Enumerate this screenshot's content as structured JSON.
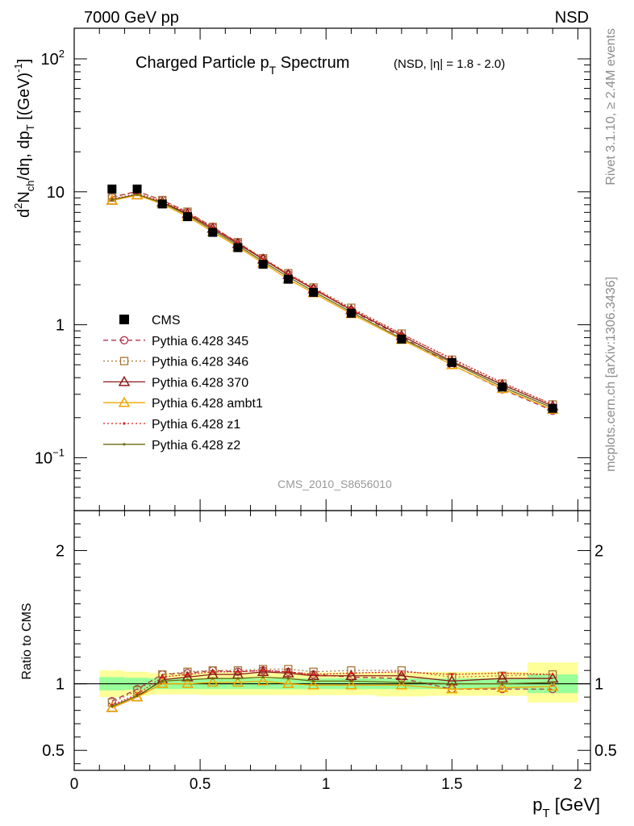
{
  "header": {
    "energy_label": "7000 GeV pp",
    "process_label": "NSD"
  },
  "title": {
    "main": "Charged Particle p",
    "main_sub": "T",
    "main_tail": " Spectrum",
    "cut": "(NSD, |η| = 1.8 - 2.0)"
  },
  "ylabel": {
    "text": "d²N_ch/dη, dp_T [(GeV)⁻¹]",
    "p1": "d",
    "p1_sup": "2",
    "p2": "N",
    "p2_sub": "ch",
    "p3": "/dη, dp",
    "p3_sub": "T",
    "p4": " [(GeV)",
    "p4_sup": "-1",
    "p5": "]"
  },
  "ratio_ylabel": "Ratio to CMS",
  "xlabel": {
    "main": "p",
    "sub": "T",
    "tail": " [GeV]"
  },
  "side_labels": {
    "rivet": "Rivet 3.1.10, ≥ 2.4M events",
    "mcplots": "mcplots.cern.ch [arXiv:1306.3436]"
  },
  "analysis_label": "CMS_2010_S8656010",
  "main_yticks": [
    {
      "base": "10",
      "exp": "2",
      "value": 100
    },
    {
      "base": "10",
      "exp": "",
      "value": 10
    },
    {
      "base": "1",
      "exp": "",
      "value": 1
    },
    {
      "base": "10",
      "exp": "−1",
      "value": 0.1
    }
  ],
  "xticks": [
    "0",
    "0.5",
    "1",
    "1.5",
    "2"
  ],
  "ratio_yticks": [
    "0.5",
    "1",
    "2"
  ],
  "legend": [
    {
      "label": "CMS",
      "color": "#000000",
      "marker": "square-filled",
      "line": "none"
    },
    {
      "label": "Pythia 6.428 345",
      "color": "#b0344e",
      "marker": "circle-open",
      "line": "dashed"
    },
    {
      "label": "Pythia 6.428 346",
      "color": "#a8783a",
      "marker": "square-open",
      "line": "dotted"
    },
    {
      "label": "Pythia 6.428 370",
      "color": "#8b1a1a",
      "marker": "triangle-open",
      "line": "solid"
    },
    {
      "label": "Pythia 6.428 ambt1",
      "color": "#f0a500",
      "marker": "triangle-open",
      "line": "solid"
    },
    {
      "label": "Pythia 6.428 z1",
      "color": "#e02020",
      "marker": "dot",
      "line": "dotted"
    },
    {
      "label": "Pythia 6.428 z2",
      "color": "#6b6b10",
      "marker": "dot",
      "line": "solid"
    }
  ],
  "chart_data": {
    "type": "line",
    "x": [
      0.15,
      0.25,
      0.35,
      0.45,
      0.55,
      0.65,
      0.75,
      0.85,
      0.95,
      1.1,
      1.3,
      1.5,
      1.7,
      1.9
    ],
    "xlim": [
      0,
      2.05
    ],
    "ylim": [
      0.04,
      170
    ],
    "yscale": "log",
    "ratio_ylim": [
      0.35,
      2.3
    ],
    "data": {
      "name": "CMS",
      "values": [
        10.5,
        10.5,
        8.1,
        6.5,
        4.95,
        3.8,
        2.85,
        2.2,
        1.75,
        1.22,
        0.78,
        0.52,
        0.34,
        0.235
      ]
    },
    "ratio_band_inner": [
      {
        "x0": 0.1,
        "x1": 0.2,
        "lo": 0.95,
        "hi": 1.05
      },
      {
        "x0": 0.2,
        "x1": 0.3,
        "lo": 0.955,
        "hi": 1.045
      },
      {
        "x0": 0.3,
        "x1": 1.8,
        "lo": 0.96,
        "hi": 1.04
      },
      {
        "x0": 1.8,
        "x1": 2.0,
        "lo": 0.93,
        "hi": 1.07
      }
    ],
    "ratio_band_outer": [
      {
        "x0": 0.1,
        "x1": 0.2,
        "lo": 0.9,
        "hi": 1.1
      },
      {
        "x0": 0.2,
        "x1": 0.3,
        "lo": 0.91,
        "hi": 1.09
      },
      {
        "x0": 0.3,
        "x1": 0.5,
        "lo": 0.92,
        "hi": 1.08
      },
      {
        "x0": 0.5,
        "x1": 1.2,
        "lo": 0.915,
        "hi": 1.085
      },
      {
        "x0": 1.2,
        "x1": 1.4,
        "lo": 0.905,
        "hi": 1.085
      },
      {
        "x0": 1.4,
        "x1": 1.8,
        "lo": 0.91,
        "hi": 1.09
      },
      {
        "x0": 1.8,
        "x1": 2.0,
        "lo": 0.86,
        "hi": 1.16
      }
    ],
    "series": [
      {
        "name": "Pythia 6.428 345",
        "ratio": [
          0.87,
          0.96,
          1.07,
          1.08,
          1.1,
          1.09,
          1.1,
          1.09,
          1.07,
          1.05,
          1.04,
          0.96,
          0.96,
          0.96
        ]
      },
      {
        "name": "Pythia 6.428 346",
        "ratio": [
          0.86,
          0.95,
          1.07,
          1.09,
          1.1,
          1.1,
          1.11,
          1.11,
          1.09,
          1.1,
          1.1,
          1.05,
          1.06,
          1.07
        ]
      },
      {
        "name": "Pythia 6.428 370",
        "ratio": [
          0.82,
          0.9,
          1.03,
          1.05,
          1.07,
          1.07,
          1.09,
          1.08,
          1.06,
          1.06,
          1.06,
          1.02,
          1.04,
          1.04
        ]
      },
      {
        "name": "Pythia 6.428 ambt1",
        "ratio": [
          0.82,
          0.9,
          1.0,
          1.0,
          1.01,
          1.01,
          1.02,
          1.0,
          0.99,
          0.99,
          0.99,
          0.96,
          0.97,
          0.98
        ]
      },
      {
        "name": "Pythia 6.428 z1",
        "ratio": [
          0.84,
          0.92,
          1.05,
          1.07,
          1.09,
          1.09,
          1.1,
          1.09,
          1.07,
          1.08,
          1.09,
          1.07,
          1.08,
          1.07
        ]
      },
      {
        "name": "Pythia 6.428 z2",
        "ratio": [
          0.83,
          0.91,
          1.02,
          1.03,
          1.04,
          1.04,
          1.05,
          1.04,
          1.02,
          1.02,
          1.01,
          1.0,
          1.0,
          1.01
        ]
      }
    ]
  }
}
